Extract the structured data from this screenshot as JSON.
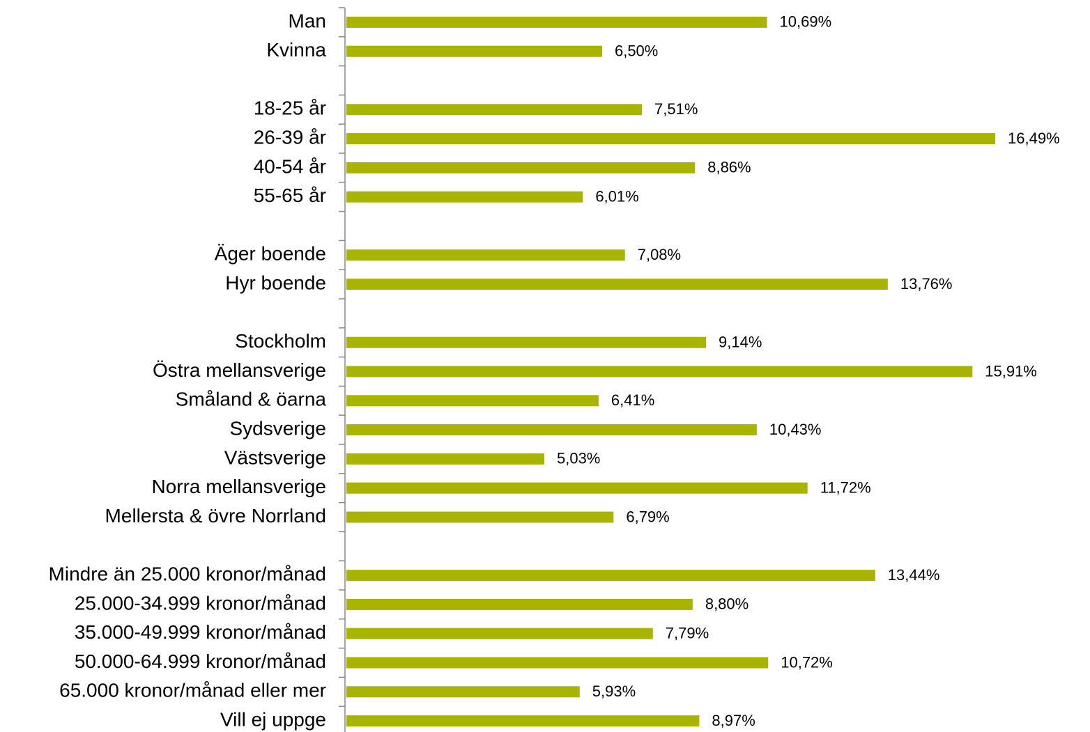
{
  "chart_data": {
    "type": "barh",
    "color": "#a9b400",
    "categories": [
      "Man",
      "Kvinna",
      null,
      "18-25 år",
      "26-39 år",
      "40-54 år",
      "55-65 år",
      null,
      "Äger boende",
      "Hyr boende",
      null,
      "Stockholm",
      "Östra mellansverige",
      "Småland & öarna",
      "Sydsverige",
      "Västsverige",
      "Norra mellansverige",
      "Mellersta & övre Norrland",
      null,
      "Mindre än 25.000 kronor/månad",
      "25.000-34.999 kronor/månad",
      "35.000-49.999 kronor/månad",
      "50.000-64.999 kronor/månad",
      "65.000 kronor/månad eller mer",
      "Vill ej uppge"
    ],
    "values": [
      10.69,
      6.5,
      null,
      7.51,
      16.49,
      8.86,
      6.01,
      null,
      7.08,
      13.76,
      null,
      9.14,
      15.91,
      6.41,
      10.43,
      5.03,
      11.72,
      6.79,
      null,
      13.44,
      8.8,
      7.79,
      10.72,
      5.93,
      8.97
    ],
    "value_labels": [
      "10,69%",
      "6,50%",
      null,
      "7,51%",
      "16,49%",
      "8,86%",
      "6,01%",
      null,
      "7,08%",
      "13,76%",
      null,
      "9,14%",
      "15,91%",
      "6,41%",
      "10,43%",
      "5,03%",
      "11,72%",
      "6,79%",
      null,
      "13,44%",
      "8,80%",
      "7,79%",
      "10,72%",
      "5,93%",
      "8,97%"
    ]
  }
}
